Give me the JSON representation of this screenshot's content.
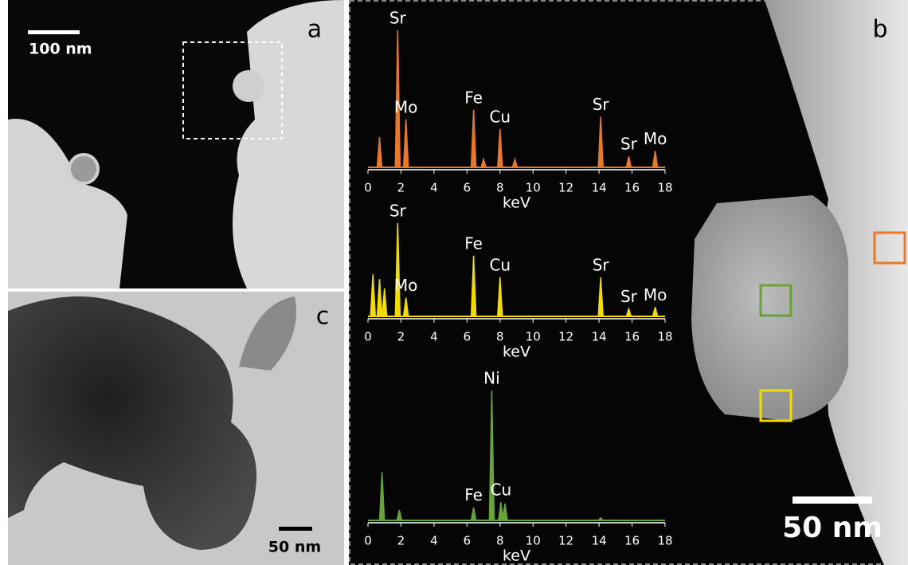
{
  "panels": {
    "a": {
      "label": "a",
      "scale_bar": "100 nm"
    },
    "b": {
      "label": "b",
      "scale_bar": "50 nm"
    },
    "c": {
      "label": "c",
      "scale_bar": "50 nm"
    }
  },
  "spectra": [
    {
      "color": "#e8782a",
      "x_label": "keV",
      "xlim": [
        0,
        18
      ],
      "xticks": [
        0,
        2,
        4,
        6,
        8,
        10,
        12,
        14,
        16,
        18
      ],
      "ylim": [
        0,
        100
      ],
      "peaks": [
        {
          "label": null,
          "energy": 0.7,
          "height": 22
        },
        {
          "label": "Sr",
          "energy": 1.8,
          "height": 100
        },
        {
          "label": "Mo",
          "energy": 2.3,
          "height": 35
        },
        {
          "label": "Fe",
          "energy": 6.4,
          "height": 42
        },
        {
          "label": null,
          "energy": 7.0,
          "height": 6
        },
        {
          "label": "Cu",
          "energy": 8.0,
          "height": 28
        },
        {
          "label": null,
          "energy": 8.9,
          "height": 6
        },
        {
          "label": "Sr",
          "energy": 14.1,
          "height": 37
        },
        {
          "label": "Sr",
          "energy": 15.8,
          "height": 8
        },
        {
          "label": "Mo",
          "energy": 17.4,
          "height": 12
        }
      ]
    },
    {
      "color": "#f2dc00",
      "x_label": "keV",
      "xlim": [
        0,
        18
      ],
      "xticks": [
        0,
        2,
        4,
        6,
        8,
        10,
        12,
        14,
        16,
        18
      ],
      "ylim": [
        0,
        100
      ],
      "peaks": [
        {
          "label": null,
          "energy": 0.3,
          "height": 45
        },
        {
          "label": null,
          "energy": 0.7,
          "height": 40
        },
        {
          "label": null,
          "energy": 1.0,
          "height": 30
        },
        {
          "label": "Sr",
          "energy": 1.8,
          "height": 100
        },
        {
          "label": "Mo",
          "energy": 2.3,
          "height": 20
        },
        {
          "label": "Fe",
          "energy": 6.4,
          "height": 65
        },
        {
          "label": "Cu",
          "energy": 8.0,
          "height": 42
        },
        {
          "label": "Sr",
          "energy": 14.1,
          "height": 42
        },
        {
          "label": "Sr",
          "energy": 15.8,
          "height": 8
        },
        {
          "label": "Mo",
          "energy": 17.4,
          "height": 10
        }
      ]
    },
    {
      "color": "#6aa23a",
      "x_label": "keV",
      "xlim": [
        0,
        18
      ],
      "xticks": [
        0,
        2,
        4,
        6,
        8,
        10,
        12,
        14,
        16,
        18
      ],
      "ylim": [
        0,
        100
      ],
      "peaks": [
        {
          "label": null,
          "energy": 0.85,
          "height": 37
        },
        {
          "label": null,
          "energy": 1.9,
          "height": 8
        },
        {
          "label": "Fe",
          "energy": 6.4,
          "height": 10
        },
        {
          "label": "Ni",
          "energy": 7.5,
          "height": 100
        },
        {
          "label": "Cu",
          "energy": 8.05,
          "height": 14
        },
        {
          "label": null,
          "energy": 8.3,
          "height": 13
        },
        {
          "label": null,
          "energy": 14.1,
          "height": 2
        }
      ]
    }
  ]
}
